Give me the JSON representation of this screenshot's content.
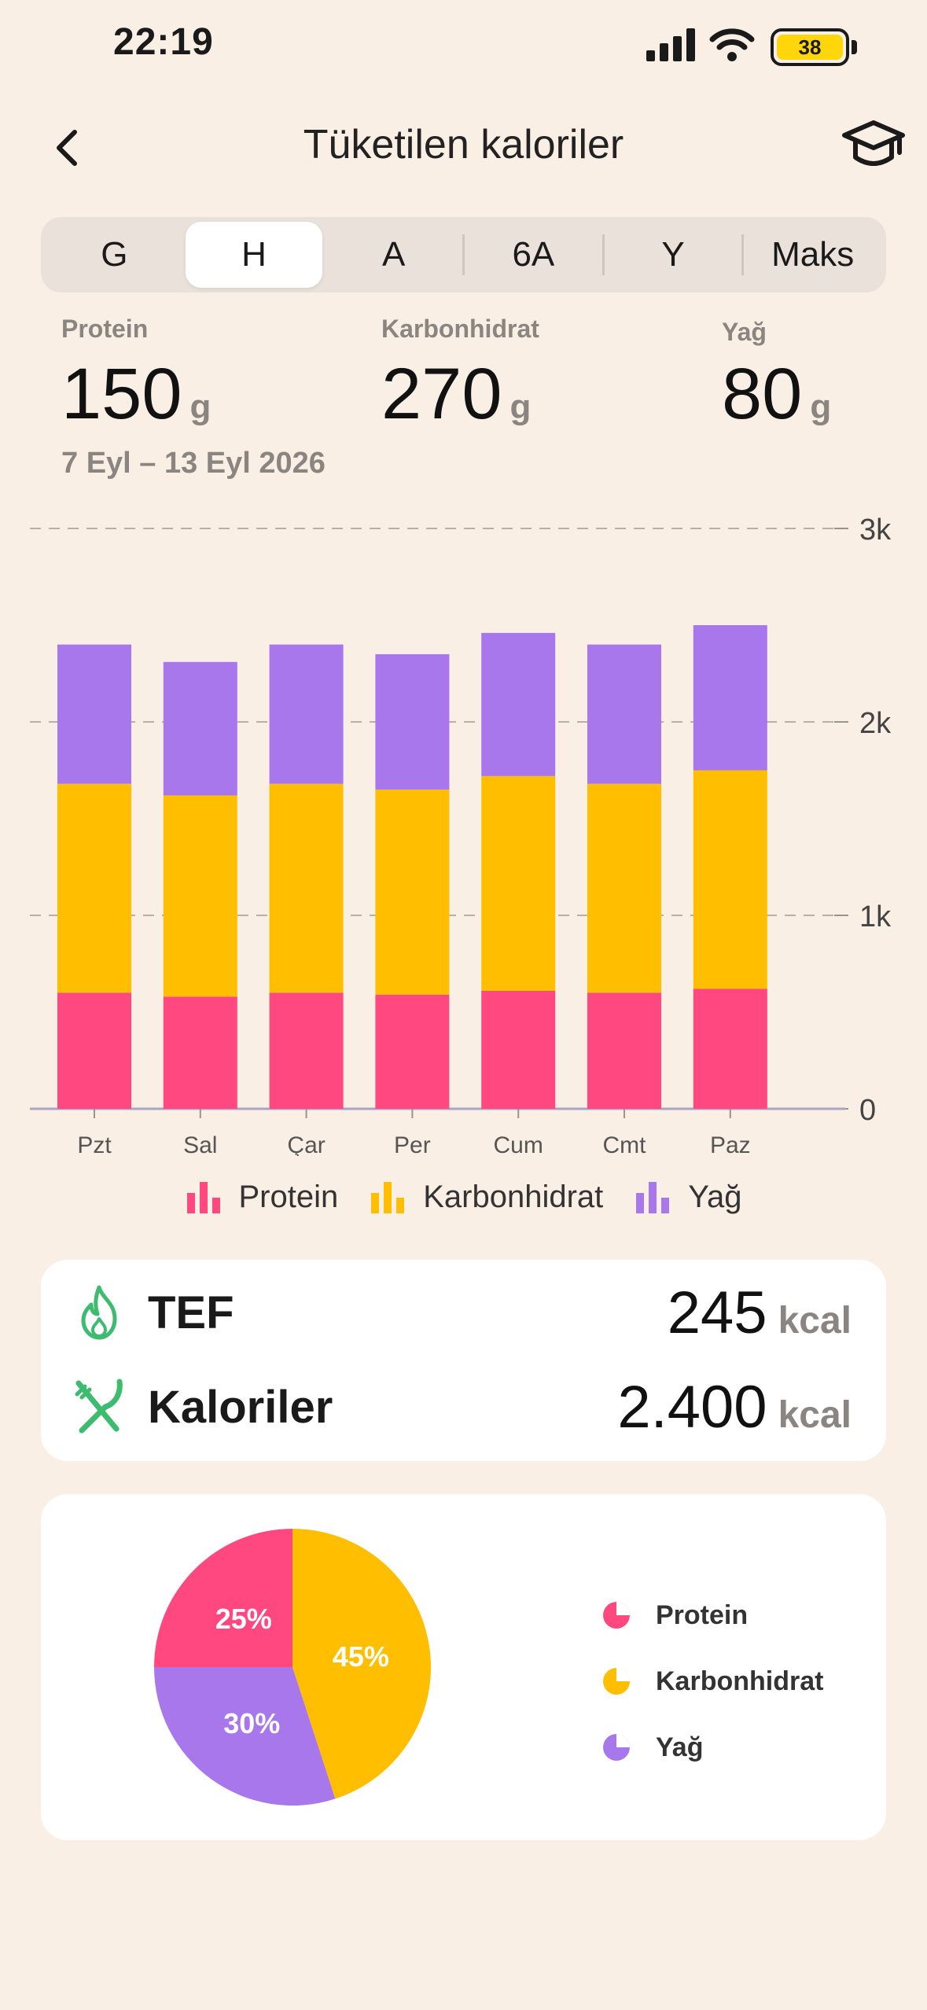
{
  "status_bar": {
    "time": "22:19",
    "battery": "38"
  },
  "header": {
    "title": "Tüketilen kaloriler"
  },
  "tabs": [
    {
      "label": "G",
      "active": false
    },
    {
      "label": "H",
      "active": true
    },
    {
      "label": "A",
      "active": false
    },
    {
      "label": "6A",
      "active": false
    },
    {
      "label": "Y",
      "active": false
    },
    {
      "label": "Maks",
      "active": false
    }
  ],
  "macros": {
    "protein": {
      "label": "Protein",
      "value": "150",
      "unit": "g"
    },
    "carb": {
      "label": "Karbonhidrat",
      "value": "270",
      "unit": "g"
    },
    "fat": {
      "label": "Yağ",
      "value": "80",
      "unit": "g"
    }
  },
  "date_range": "7 Eyl – 13 Eyl 2026",
  "colors": {
    "protein": "#FF4880",
    "carb": "#FFBE00",
    "fat": "#A877EC",
    "accent_green": "#3DBB6E"
  },
  "chart_data": {
    "type": "bar",
    "stacked": true,
    "categories": [
      "Pzt",
      "Sal",
      "Çar",
      "Per",
      "Cum",
      "Cmt",
      "Paz"
    ],
    "series": [
      {
        "name": "Protein",
        "values": [
          600,
          580,
          600,
          590,
          610,
          600,
          620
        ]
      },
      {
        "name": "Karbonhidrat",
        "values": [
          1080,
          1040,
          1080,
          1060,
          1110,
          1080,
          1130
        ]
      },
      {
        "name": "Yağ",
        "values": [
          720,
          690,
          720,
          700,
          740,
          720,
          750
        ]
      }
    ],
    "y_ticks": [
      "0",
      "1k",
      "2k",
      "3k"
    ],
    "ylim": [
      0,
      3000
    ],
    "grid": true,
    "legend": "bottom"
  },
  "stats": {
    "tef": {
      "label": "TEF",
      "value": "245",
      "unit": "kcal"
    },
    "calories": {
      "label": "Kaloriler",
      "value": "2.400",
      "unit": "kcal"
    }
  },
  "pie_chart": {
    "type": "pie",
    "slices": [
      {
        "name": "Protein",
        "value": 25,
        "label": "25%"
      },
      {
        "name": "Karbonhidrat",
        "value": 45,
        "label": "45%"
      },
      {
        "name": "Yağ",
        "value": 30,
        "label": "30%"
      }
    ]
  },
  "icons": {
    "back": "chevron-left-icon",
    "learn": "graduation-cap-icon",
    "tef": "flame-icon",
    "calories": "fork-knife-icon"
  }
}
